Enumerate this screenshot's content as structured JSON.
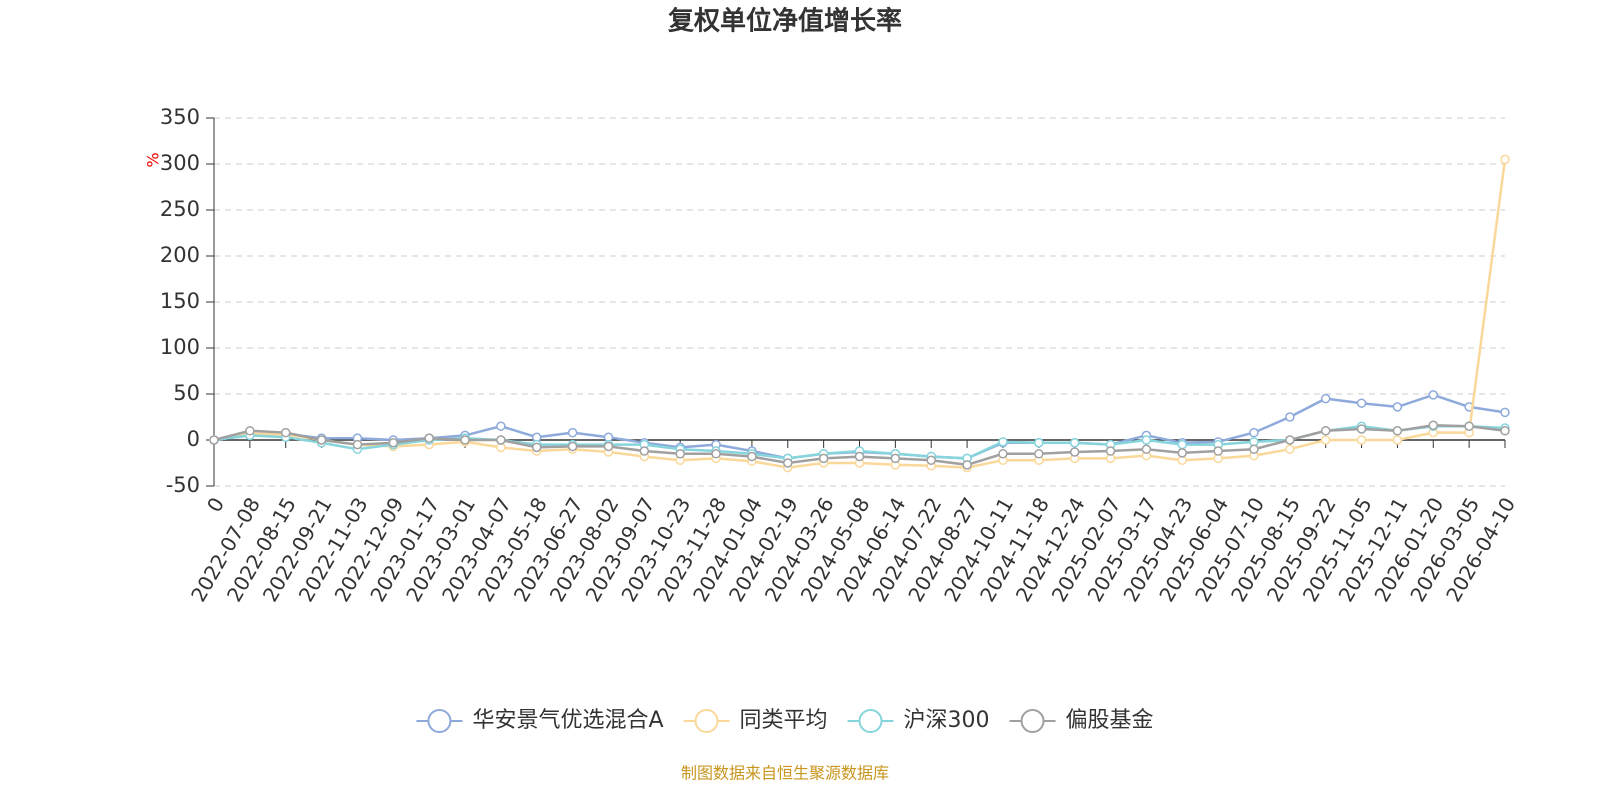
{
  "chart_data": {
    "type": "line",
    "title": "复权单位净值增长率",
    "y_label": "%",
    "categories": [
      "0",
      "2022-07-08",
      "2022-08-15",
      "2022-09-21",
      "2022-11-03",
      "2022-12-09",
      "2023-01-17",
      "2023-03-01",
      "2023-04-07",
      "2023-05-18",
      "2023-06-27",
      "2023-08-02",
      "2023-09-07",
      "2023-10-23",
      "2023-11-28",
      "2024-01-04",
      "2024-02-19",
      "2024-03-26",
      "2024-05-08",
      "2024-06-14",
      "2024-07-22",
      "2024-08-27",
      "2024-10-11",
      "2024-11-18",
      "2024-12-24",
      "2025-02-07",
      "2025-03-17",
      "2025-04-23",
      "2025-06-04",
      "2025-07-10",
      "2025-08-15",
      "2025-09-22",
      "2025-11-05",
      "2025-12-11",
      "2026-01-20",
      "2026-03-05",
      "2026-04-10"
    ],
    "series": [
      {
        "name": "华安景气优选混合A",
        "color": "#8eaadb",
        "values": [
          0,
          5,
          7,
          2,
          2,
          0,
          2,
          5,
          15,
          3,
          8,
          3,
          -3,
          -8,
          -5,
          -12,
          -20,
          -15,
          -13,
          -15,
          -18,
          -20,
          -3,
          -3,
          -3,
          -5,
          5,
          -3,
          -2,
          8,
          25,
          45,
          40,
          36,
          49,
          36,
          30
        ]
      },
      {
        "name": "同类平均",
        "color": "#fad89a",
        "values": [
          0,
          7,
          6,
          0,
          -5,
          -7,
          -5,
          -2,
          -8,
          -12,
          -10,
          -13,
          -18,
          -22,
          -20,
          -23,
          -30,
          -25,
          -25,
          -27,
          -28,
          -30,
          -22,
          -22,
          -20,
          -20,
          -17,
          -22,
          -20,
          -17,
          -10,
          0,
          0,
          0,
          8,
          8,
          305
        ]
      },
      {
        "name": "沪深300",
        "color": "#86d4dc",
        "values": [
          0,
          5,
          3,
          -3,
          -10,
          -5,
          0,
          2,
          0,
          -5,
          -5,
          -5,
          -5,
          -10,
          -12,
          -15,
          -20,
          -15,
          -12,
          -15,
          -18,
          -20,
          -2,
          -3,
          -3,
          -5,
          0,
          -5,
          -5,
          -2,
          0,
          10,
          15,
          10,
          15,
          15,
          13
        ]
      },
      {
        "name": "偏股基金",
        "color": "#a0a0a0",
        "values": [
          0,
          10,
          8,
          0,
          -5,
          -3,
          2,
          0,
          0,
          -8,
          -7,
          -7,
          -12,
          -15,
          -15,
          -18,
          -25,
          -20,
          -18,
          -20,
          -22,
          -27,
          -15,
          -15,
          -13,
          -12,
          -10,
          -14,
          -12,
          -10,
          0,
          10,
          12,
          10,
          16,
          15,
          10
        ]
      }
    ],
    "ylim": [
      -50,
      350
    ],
    "yticks": [
      -50,
      0,
      50,
      100,
      150,
      200,
      250,
      300,
      350
    ],
    "grid": true,
    "source": "制图数据来自恒生聚源数据库"
  }
}
